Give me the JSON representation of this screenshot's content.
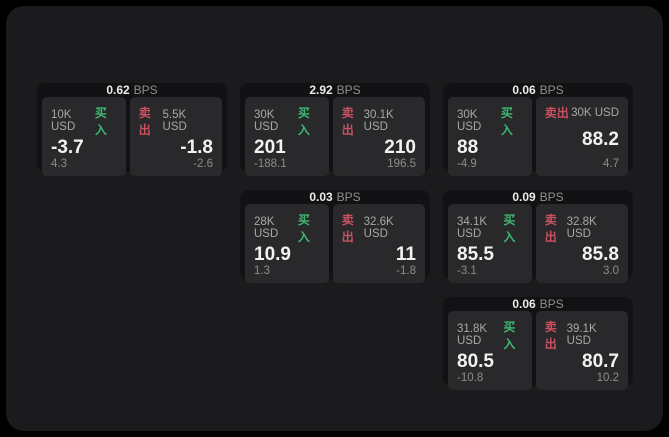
{
  "labels": {
    "buy": "买入",
    "sell": "卖出",
    "bps": "BPS"
  },
  "colors": {
    "page-bg": "#000000",
    "container-bg": "#1b1b1d",
    "card-bg": "#121214",
    "panel-bg": "#29292b",
    "buy-green": "#3eb971",
    "sell-red": "#cb5160"
  },
  "cards": [
    {
      "bps": "0.62",
      "buy": {
        "amount": "10K USD",
        "value": "-3.7",
        "sub": "4.3"
      },
      "sell": {
        "amount": "5.5K USD",
        "value": "-1.8",
        "sub": "-2.6"
      }
    },
    {
      "bps": "2.92",
      "buy": {
        "amount": "30K USD",
        "value": "201",
        "sub": "-188.1"
      },
      "sell": {
        "amount": "30.1K USD",
        "value": "210",
        "sub": "196.5"
      }
    },
    {
      "bps": "0.06",
      "buy": {
        "amount": "30K USD",
        "value": "88",
        "sub": "-4.9"
      },
      "sell": {
        "amount": "30K USD",
        "value": "88.2",
        "sub": "4.7"
      }
    },
    {
      "bps": "0.03",
      "buy": {
        "amount": "28K USD",
        "value": "10.9",
        "sub": "1.3"
      },
      "sell": {
        "amount": "32.6K USD",
        "value": "11",
        "sub": "-1.8"
      }
    },
    {
      "bps": "0.09",
      "buy": {
        "amount": "34.1K USD",
        "value": "85.5",
        "sub": "-3.1"
      },
      "sell": {
        "amount": "32.8K USD",
        "value": "85.8",
        "sub": "3.0"
      }
    },
    {
      "bps": "0.06",
      "buy": {
        "amount": "31.8K USD",
        "value": "80.5",
        "sub": "-10.8"
      },
      "sell": {
        "amount": "39.1K USD",
        "value": "80.7",
        "sub": "10.2"
      }
    }
  ]
}
